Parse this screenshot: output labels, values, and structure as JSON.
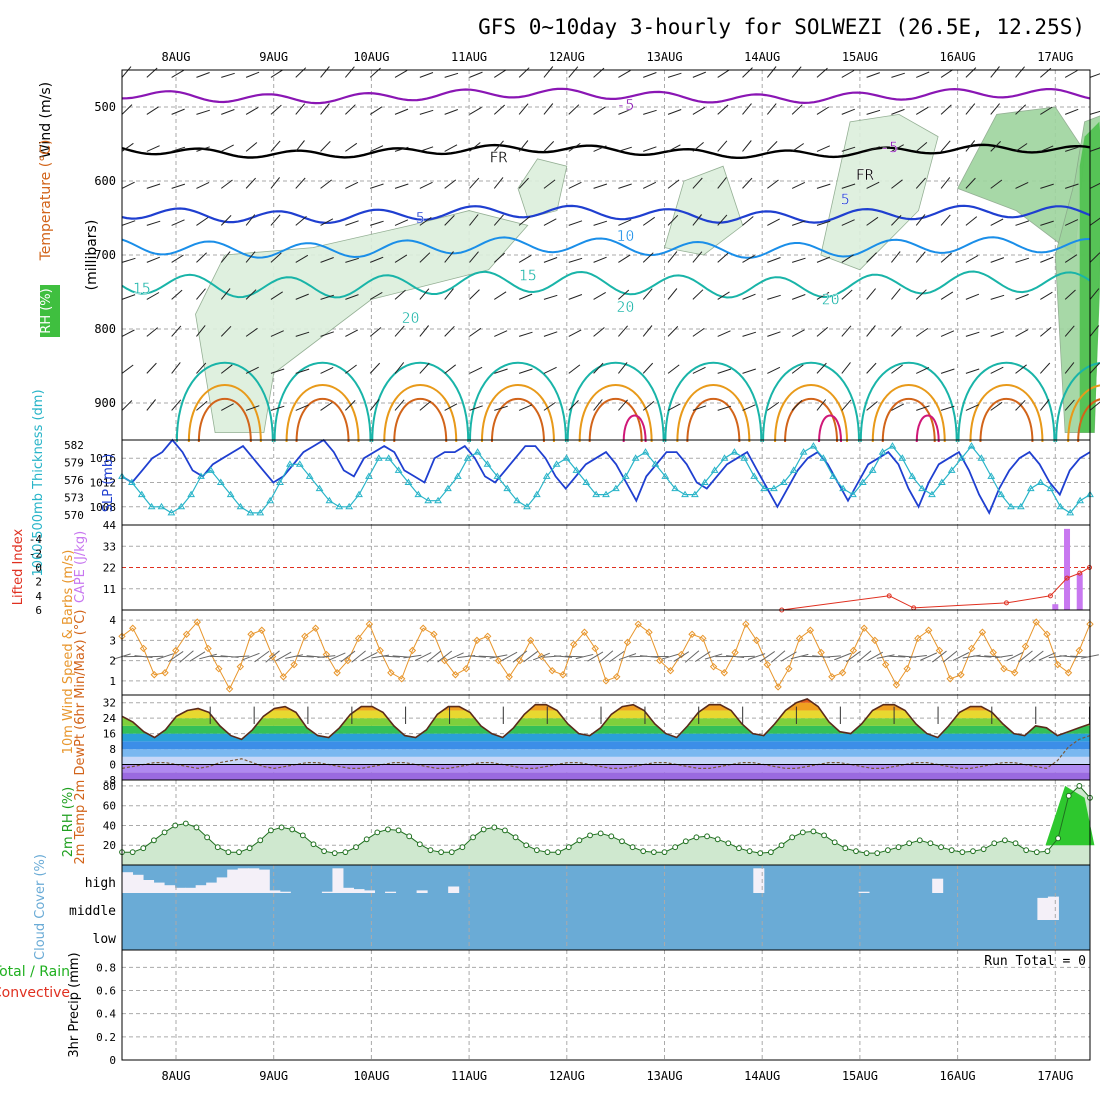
{
  "title": "GFS 0~10day 3-hourly for SOLWEZI (26.5E, 12.25S)",
  "colors": {
    "purple": "#8a16b4",
    "blue": "#1f3fd0",
    "lightblue": "#1a8ee8",
    "teal": "#19b4a8",
    "orange": "#e89a1a",
    "darkorange": "#d2641a",
    "magenta": "#d01878",
    "cyan": "#28b4c8",
    "slp": "#1f3fd0",
    "cape": "#c878f0",
    "li": "#e03020",
    "wind10m": "#e8962c",
    "rh2m": "#20a020",
    "cloud": "#6aabd6",
    "cloudfree": "#f4f0f8"
  },
  "chart_data": [
    {
      "panel": "upper-air",
      "type": "contour",
      "categories": [
        "8AUG",
        "9AUG",
        "10AUG",
        "11AUG",
        "12AUG",
        "13AUG",
        "14AUG",
        "15AUG",
        "16AUG",
        "17AUG"
      ],
      "ylabel": "(millibars)",
      "side_labels": [
        "Wind (m/s)",
        "Temperature (°C)",
        "RH (%)"
      ],
      "ylim": [
        950,
        450
      ],
      "yticks": [
        500,
        600,
        700,
        800,
        900
      ],
      "contour_labels": [
        {
          "text": "-5",
          "x": 4.6,
          "y": 497
        },
        {
          "text": "FR",
          "x": 3.3,
          "y": 568
        },
        {
          "text": "FR",
          "x": 7.05,
          "y": 592
        },
        {
          "text": "-5",
          "x": 7.3,
          "y": 555
        },
        {
          "text": "5",
          "x": 2.5,
          "y": 650
        },
        {
          "text": "5",
          "x": 6.85,
          "y": 625
        },
        {
          "text": "10",
          "x": 4.6,
          "y": 674
        },
        {
          "text": "15",
          "x": -0.35,
          "y": 745
        },
        {
          "text": "15",
          "x": 3.6,
          "y": 728
        },
        {
          "text": "20",
          "x": 2.4,
          "y": 785
        },
        {
          "text": "20",
          "x": 4.6,
          "y": 770
        },
        {
          "text": "20",
          "x": 6.7,
          "y": 760
        }
      ]
    },
    {
      "panel": "slp-thickness",
      "type": "line",
      "ylabel": "SLP (mb)",
      "ylabel2": "1000-500mb Thickness (dm)",
      "ylim": [
        1005,
        1019
      ],
      "yticks": [
        1008,
        1012,
        1016
      ],
      "yticks2": [
        570,
        573,
        576,
        579,
        582
      ],
      "series": [
        {
          "values": [
            1013,
            1012,
            1014,
            1016,
            1017,
            1019,
            1017,
            1014,
            1013,
            1015,
            1016,
            1017,
            1018,
            1016,
            1014,
            1012,
            1013,
            1015,
            1017,
            1018,
            1019,
            1017,
            1014,
            1013,
            1016,
            1017,
            1018,
            1017,
            1014,
            1013,
            1012,
            1016,
            1017,
            1017,
            1018,
            1016,
            1013,
            1012,
            1014,
            1016,
            1018,
            1018,
            1016,
            1013,
            1011,
            1013,
            1015,
            1016,
            1017,
            1015,
            1012,
            1009,
            1013,
            1015,
            1017,
            1017,
            1015,
            1012,
            1011,
            1013,
            1015,
            1016,
            1017,
            1014,
            1011,
            1008,
            1011,
            1014,
            1016,
            1017,
            1015,
            1012,
            1009,
            1012,
            1015,
            1016,
            1017,
            1015,
            1011,
            1008,
            1012,
            1015,
            1016,
            1017,
            1014,
            1010,
            1007,
            1011,
            1014,
            1016,
            1017,
            1015,
            1012,
            1010,
            1014,
            1016,
            1017
          ]
        },
        {
          "values": [
            1013,
            1012,
            1010,
            1008,
            1008,
            1007,
            1008,
            1010,
            1013,
            1014,
            1012,
            1010,
            1008,
            1007,
            1007,
            1009,
            1012,
            1015,
            1015,
            1013,
            1011,
            1009,
            1008,
            1008,
            1010,
            1013,
            1016,
            1016,
            1014,
            1012,
            1010,
            1009,
            1009,
            1011,
            1013,
            1016,
            1017,
            1015,
            1013,
            1011,
            1009,
            1008,
            1010,
            1013,
            1015,
            1016,
            1014,
            1012,
            1010,
            1010,
            1011,
            1013,
            1016,
            1017,
            1015,
            1013,
            1011,
            1010,
            1010,
            1012,
            1014,
            1016,
            1017,
            1016,
            1013,
            1011,
            1011,
            1012,
            1014,
            1017,
            1018,
            1016,
            1013,
            1011,
            1010,
            1012,
            1014,
            1017,
            1018,
            1016,
            1013,
            1011,
            1010,
            1012,
            1014,
            1016,
            1018,
            1016,
            1013,
            1010,
            1008,
            1008,
            1011,
            1012,
            1011,
            1008,
            1007,
            1009,
            1010
          ]
        }
      ]
    },
    {
      "panel": "cape-li",
      "type": "bar",
      "ylabel": "Lifted Index",
      "ylabel2": "CAPE (J/kg)",
      "ylim": [
        0,
        44
      ],
      "yticks": [
        11,
        22,
        33,
        44
      ],
      "yticks2": [
        -4,
        -2,
        0,
        2,
        4,
        6
      ],
      "cape": [
        {
          "x": 9.0,
          "value": 3
        },
        {
          "x": 9.12,
          "value": 42
        },
        {
          "x": 9.25,
          "value": 19
        }
      ],
      "li": [
        {
          "x": 6.2,
          "value": 6
        },
        {
          "x": 7.3,
          "value": 4
        },
        {
          "x": 7.55,
          "value": 5.7
        },
        {
          "x": 8.5,
          "value": 5
        },
        {
          "x": 8.95,
          "value": 4
        },
        {
          "x": 9.12,
          "value": 1.5
        },
        {
          "x": 9.25,
          "value": 0.8
        },
        {
          "x": 9.35,
          "value": 0
        }
      ]
    },
    {
      "panel": "wind-10m",
      "type": "line",
      "ylabel": "10m Wind Speed & Barbs (m/s)",
      "ylim": [
        0.3,
        4.5
      ],
      "yticks": [
        1,
        2,
        3,
        4
      ],
      "values": [
        3.2,
        3.6,
        2.6,
        1.3,
        1.4,
        2.5,
        3.3,
        3.9,
        2.6,
        1.6,
        0.6,
        1.7,
        3.3,
        3.5,
        2.2,
        1.2,
        1.8,
        3.2,
        3.6,
        2.3,
        1.4,
        2.0,
        3.1,
        3.8,
        2.5,
        1.4,
        1.1,
        2.5,
        3.6,
        3.3,
        2.0,
        1.3,
        1.6,
        3.0,
        3.2,
        2.0,
        1.2,
        2.0,
        3.0,
        2.2,
        1.5,
        1.3,
        2.8,
        3.4,
        2.6,
        1.0,
        1.2,
        2.9,
        3.8,
        3.4,
        2.0,
        1.5,
        2.3,
        3.3,
        3.1,
        1.7,
        1.4,
        2.4,
        3.8,
        3.0,
        1.8,
        0.7,
        1.6,
        3.1,
        3.5,
        2.4,
        1.2,
        1.4,
        2.5,
        3.6,
        3.0,
        1.8,
        0.8,
        1.6,
        3.1,
        3.5,
        2.5,
        1.1,
        1.3,
        2.6,
        3.4,
        2.4,
        1.6,
        1.4,
        2.7,
        3.9,
        3.3,
        1.8,
        1.4,
        2.5,
        3.8
      ]
    },
    {
      "panel": "temp-2m",
      "type": "area",
      "ylabel": "2m Temp 2m DewPt (6hr Min/Max) (°C)",
      "ylim": [
        -8,
        36
      ],
      "yticks": [
        -8,
        0,
        8,
        16,
        24,
        32
      ],
      "temp": [
        25,
        22,
        17,
        14,
        18,
        25,
        28,
        29,
        27,
        20,
        15,
        13,
        18,
        25,
        29,
        30,
        27,
        19,
        15,
        14,
        19,
        26,
        30,
        30,
        27,
        20,
        15,
        14,
        18,
        26,
        30,
        30,
        27,
        20,
        16,
        14,
        19,
        26,
        31,
        31,
        28,
        21,
        16,
        15,
        19,
        26,
        30,
        31,
        28,
        21,
        16,
        14,
        20,
        27,
        31,
        31,
        28,
        21,
        16,
        15,
        21,
        28,
        32,
        34,
        30,
        22,
        17,
        16,
        21,
        28,
        31,
        31,
        28,
        21,
        16,
        14,
        20,
        27,
        30,
        30,
        27,
        21,
        16,
        15,
        20,
        19,
        15,
        17,
        19,
        21
      ],
      "dewpt": [
        -2,
        -1,
        0,
        1,
        1,
        0,
        -1,
        -2,
        -1,
        1,
        2,
        3,
        1,
        -1,
        -2,
        -1,
        0,
        1,
        1,
        0,
        -1,
        -2,
        -2,
        -1,
        0,
        1,
        1,
        0,
        -1,
        -2,
        -2,
        -1,
        0,
        1,
        1,
        0,
        -1,
        -2,
        -2,
        -1,
        0,
        1,
        1,
        0,
        -1,
        -2,
        -2,
        -1,
        0,
        1,
        1,
        0,
        -1,
        -2,
        -2,
        -1,
        0,
        1,
        1,
        0,
        -1,
        -2,
        -2,
        -1,
        0,
        1,
        1,
        0,
        -1,
        -2,
        -2,
        -1,
        0,
        1,
        1,
        0,
        -1,
        -2,
        -2,
        -1,
        0,
        1,
        1,
        0,
        -1,
        -2,
        2,
        9,
        13,
        15
      ]
    },
    {
      "panel": "rh-2m",
      "type": "area",
      "ylabel": "2m RH (%)",
      "ylim": [
        0,
        86
      ],
      "yticks": [
        20,
        40,
        60,
        80
      ],
      "values": [
        13,
        13,
        17,
        25,
        33,
        40,
        42,
        38,
        28,
        18,
        13,
        13,
        17,
        25,
        35,
        38,
        36,
        30,
        21,
        14,
        12,
        13,
        18,
        26,
        33,
        36,
        35,
        29,
        21,
        15,
        13,
        13,
        18,
        28,
        36,
        38,
        35,
        28,
        20,
        15,
        13,
        13,
        18,
        25,
        30,
        32,
        29,
        24,
        18,
        14,
        13,
        13,
        18,
        24,
        28,
        29,
        26,
        22,
        17,
        14,
        12,
        13,
        20,
        28,
        33,
        34,
        30,
        23,
        17,
        14,
        12,
        12,
        15,
        18,
        22,
        25,
        22,
        18,
        15,
        13,
        14,
        16,
        22,
        25,
        22,
        15,
        13,
        14,
        27,
        70,
        80,
        68
      ]
    },
    {
      "panel": "cloud-cover",
      "type": "bar",
      "ylabel": "Cloud Cover (%)",
      "levels": [
        "high",
        "middle",
        "low"
      ],
      "high": [
        0.8,
        0.7,
        0.5,
        0.4,
        0.3,
        0.2,
        0.2,
        0.3,
        0.4,
        0.6,
        0.9,
        0.95,
        0.95,
        0.9,
        0.1,
        0.05,
        0,
        0,
        0,
        0.05,
        0.95,
        0.2,
        0.15,
        0.1,
        0,
        0.05,
        0,
        0,
        0.1,
        0,
        0,
        0.25,
        0,
        0,
        0,
        0,
        0,
        0,
        0,
        0,
        0,
        0,
        0,
        0,
        0,
        0,
        0,
        0,
        0,
        0,
        0,
        0,
        0,
        0,
        0,
        0,
        0,
        0,
        0,
        0,
        0.95,
        0,
        0,
        0,
        0,
        0,
        0,
        0,
        0,
        0,
        0.05,
        0,
        0,
        0,
        0,
        0,
        0,
        0.55,
        0,
        0,
        0,
        0,
        0,
        0,
        0,
        0,
        0,
        0,
        0,
        0,
        0,
        0
      ],
      "middle": [
        0,
        0,
        0,
        0,
        0,
        0,
        0,
        0,
        0,
        0,
        0,
        0,
        0,
        0,
        0,
        0,
        0,
        0,
        0,
        0,
        0,
        0,
        0,
        0,
        0,
        0,
        0,
        0,
        0,
        0,
        0,
        0,
        0,
        0,
        0,
        0,
        0,
        0,
        0,
        0,
        0,
        0,
        0,
        0,
        0,
        0,
        0,
        0,
        0,
        0,
        0,
        0,
        0,
        0,
        0,
        0,
        0,
        0,
        0,
        0,
        0,
        0,
        0,
        0,
        0,
        0,
        0,
        0,
        0,
        0,
        0,
        0,
        0,
        0,
        0,
        0,
        0,
        0,
        0,
        0,
        0,
        0,
        0,
        0,
        0,
        0,
        0,
        0.85,
        0.9,
        0,
        0,
        0
      ]
    },
    {
      "panel": "precip-3hr",
      "type": "bar",
      "ylabel": "3hr Precip (mm)",
      "side_labels": [
        "Total / Rain",
        "Convective"
      ],
      "ylim": [
        0,
        0.95
      ],
      "yticks": [
        0,
        0.2,
        0.4,
        0.6,
        0.8
      ],
      "run_total_label": "Run Total = 0",
      "values": []
    }
  ]
}
